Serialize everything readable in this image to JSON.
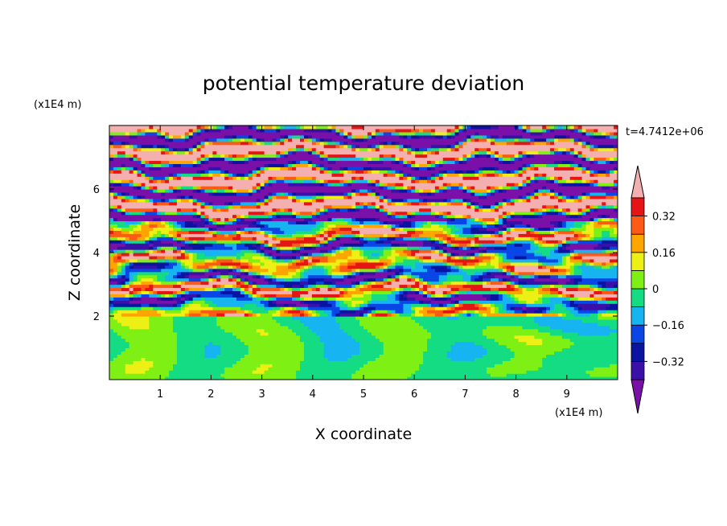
{
  "chart_data": {
    "type": "heatmap",
    "title": "potential temperature deviation",
    "xlabel": "X coordinate",
    "ylabel": "Z coordinate",
    "x_unit_label": "(x1E4 m)",
    "y_unit_label": "(x1E4 m)",
    "time_label": "t=4.7412e+06",
    "xlim": [
      0,
      10
    ],
    "ylim": [
      0,
      8
    ],
    "x_ticks": [
      1,
      2,
      3,
      4,
      5,
      6,
      7,
      8,
      9
    ],
    "y_ticks": [
      2,
      4,
      6
    ],
    "colorbar": {
      "levels": [
        -0.48,
        -0.4,
        -0.32,
        -0.24,
        -0.16,
        -0.08,
        0,
        0.08,
        0.16,
        0.24,
        0.32,
        0.4,
        0.48
      ],
      "colors": [
        "#7a10a8",
        "#3a10a8",
        "#0a14a0",
        "#0a46e6",
        "#16b4f0",
        "#14dc82",
        "#7ef014",
        "#ecf014",
        "#ffa500",
        "#ff5a14",
        "#e61414",
        "#f4b0b0"
      ],
      "tick_labels": [
        "0.32",
        "0.16",
        "0",
        "−0.16",
        "−0.32"
      ],
      "tick_values": [
        0.32,
        0.16,
        0,
        -0.16,
        -0.32
      ]
    }
  }
}
